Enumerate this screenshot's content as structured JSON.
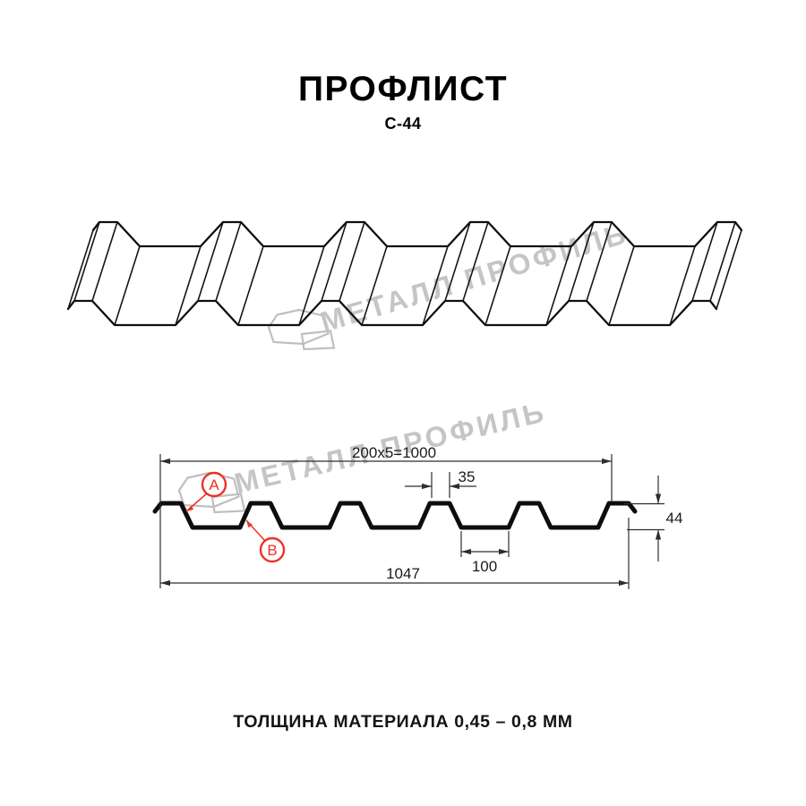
{
  "header": {
    "title": "ПРОФЛИСТ",
    "subtitle": "С-44"
  },
  "watermark": {
    "text": "МЕТАЛЛ ПРОФИЛЬ",
    "logo_icon": "metal-profil-logo",
    "color": "#c5c5c5"
  },
  "diagram": {
    "top_dim_label": "200x5=1000",
    "rib_top_width_label": "35",
    "height_label": "44",
    "overall_width_label": "1047",
    "trough_width_label": "100",
    "point_a_label": "А",
    "point_b_label": "В"
  },
  "footer": {
    "thickness_text": "ТОЛЩИНА МАТЕРИАЛА 0,45 – 0,8 ММ"
  },
  "colors": {
    "accent_red": "#ee3124",
    "line_black": "#101010",
    "watermark_gray": "#c5c5c5"
  }
}
